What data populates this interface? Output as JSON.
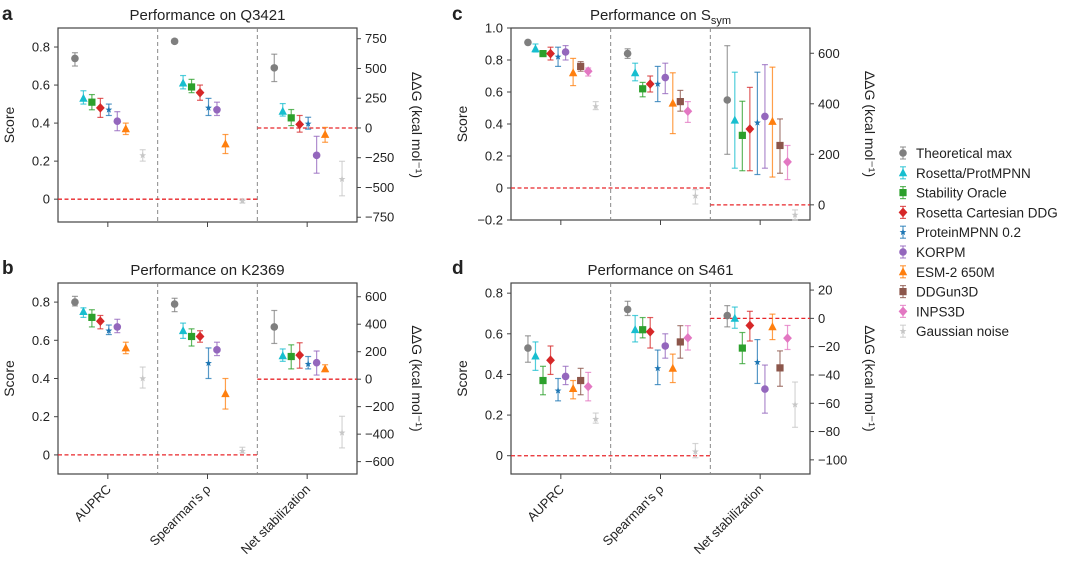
{
  "chart_data": {
    "type": "scatter",
    "subtype": "errorbar-dot-plot",
    "methods": [
      {
        "name": "Theoretical max",
        "color": "#7f7f7f",
        "marker": "circle"
      },
      {
        "name": "Rosetta/ProtMPNN",
        "color": "#17becf",
        "marker": "triangle"
      },
      {
        "name": "Stability Oracle",
        "color": "#2ca02c",
        "marker": "square"
      },
      {
        "name": "Rosetta Cartesian DDG",
        "color": "#d62728",
        "marker": "diamond"
      },
      {
        "name": "ProteinMPNN 0.2",
        "color": "#1f77b4",
        "marker": "star"
      },
      {
        "name": "KORPM",
        "color": "#9467bd",
        "marker": "circle"
      },
      {
        "name": "ESM-2 650M",
        "color": "#ff7f0e",
        "marker": "triangle"
      },
      {
        "name": "DDGun3D",
        "color": "#8c564b",
        "marker": "square"
      },
      {
        "name": "INPS3D",
        "color": "#e377c2",
        "marker": "diamond"
      },
      {
        "name": "Gaussian noise",
        "color": "#c7c7c7",
        "marker": "star"
      }
    ],
    "categories": [
      "AUPRC",
      "Spearman's ρ",
      "Net stabilization"
    ],
    "legend": {
      "placement": "right"
    },
    "panels": [
      {
        "letter": "a",
        "title": "Performance on Q3421",
        "title_sub": "",
        "ylabel": "Score",
        "y2label": "ΔΔG (kcal mol⁻¹)",
        "ylim": [
          -0.12,
          0.9
        ],
        "yticks": [
          0,
          0.2,
          0.4,
          0.6,
          0.8
        ],
        "yticklabels": [
          "0",
          "0.2",
          "0.4",
          "0.6",
          "0.8"
        ],
        "y2lim": [
          -790,
          840
        ],
        "y2ticks": [
          -750,
          -500,
          -250,
          0,
          250,
          500,
          750
        ],
        "y2ticklabels": [
          "−750",
          "−500",
          "−250",
          "0",
          "250",
          "500",
          "750"
        ],
        "groups": [
          {
            "category": "AUPRC",
            "axis": "left",
            "methods": [
              "Theoretical max",
              "Rosetta/ProtMPNN",
              "Stability Oracle",
              "Rosetta Cartesian DDG",
              "ProteinMPNN 0.2",
              "KORPM",
              "ESM-2 650M",
              "Gaussian noise"
            ],
            "values": [
              0.74,
              0.53,
              0.51,
              0.48,
              0.47,
              0.41,
              0.37,
              0.23
            ],
            "err_low": [
              0.7,
              0.5,
              0.47,
              0.43,
              0.44,
              0.36,
              0.34,
              0.2
            ],
            "err_high": [
              0.77,
              0.57,
              0.55,
              0.53,
              0.5,
              0.46,
              0.4,
              0.26
            ]
          },
          {
            "category": "Spearman's ρ",
            "axis": "left",
            "methods": [
              "Theoretical max",
              "Rosetta/ProtMPNN",
              "Stability Oracle",
              "Rosetta Cartesian DDG",
              "ProteinMPNN 0.2",
              "KORPM",
              "ESM-2 650M",
              "Gaussian noise"
            ],
            "values": [
              0.83,
              0.61,
              0.59,
              0.56,
              0.48,
              0.47,
              0.29,
              -0.01
            ],
            "err_low": [
              0.82,
              0.58,
              0.56,
              0.52,
              0.44,
              0.44,
              0.24,
              -0.02
            ],
            "err_high": [
              0.84,
              0.65,
              0.63,
              0.6,
              0.53,
              0.51,
              0.34,
              0.0
            ]
          },
          {
            "category": "Net stabilization",
            "axis": "right",
            "methods": [
              "Theoretical max",
              "Rosetta/ProtMPNN",
              "Stability Oracle",
              "Rosetta Cartesian DDG",
              "ProteinMPNN 0.2",
              "KORPM",
              "ESM-2 650M",
              "Gaussian noise"
            ],
            "values": [
              505,
              140,
              85,
              30,
              35,
              -230,
              -55,
              -430
            ],
            "err_low": [
              390,
              100,
              20,
              -35,
              -10,
              -380,
              -120,
              -570
            ],
            "err_high": [
              620,
              205,
              155,
              105,
              90,
              -70,
              5,
              -280
            ]
          }
        ],
        "reference": {
          "left_zero_until": "Net stabilization",
          "right_zero_from": "Net stabilization"
        }
      },
      {
        "letter": "b",
        "title": "Performance on K2369",
        "title_sub": "",
        "ylabel": "Score",
        "y2label": "ΔΔG (kcal mol⁻¹)",
        "ylim": [
          -0.1,
          0.9
        ],
        "yticks": [
          0,
          0.2,
          0.4,
          0.6,
          0.8
        ],
        "yticklabels": [
          "0",
          "0.2",
          "0.4",
          "0.6",
          "0.8"
        ],
        "y2lim": [
          -690,
          700
        ],
        "y2ticks": [
          -600,
          -400,
          -200,
          0,
          200,
          400,
          600
        ],
        "y2ticklabels": [
          "−600",
          "−400",
          "−200",
          "0",
          "200",
          "400",
          "600"
        ],
        "groups": [
          {
            "category": "AUPRC",
            "axis": "left",
            "methods": [
              "Theoretical max",
              "Rosetta/ProtMPNN",
              "Stability Oracle",
              "Rosetta Cartesian DDG",
              "ProteinMPNN 0.2",
              "KORPM",
              "ESM-2 650M",
              "Gaussian noise"
            ],
            "values": [
              0.8,
              0.75,
              0.72,
              0.7,
              0.65,
              0.67,
              0.56,
              0.4
            ],
            "err_low": [
              0.78,
              0.72,
              0.67,
              0.66,
              0.63,
              0.64,
              0.53,
              0.35
            ],
            "err_high": [
              0.83,
              0.77,
              0.76,
              0.73,
              0.68,
              0.71,
              0.59,
              0.46
            ]
          },
          {
            "category": "Spearman's ρ",
            "axis": "left",
            "methods": [
              "Theoretical max",
              "Rosetta/ProtMPNN",
              "Stability Oracle",
              "Rosetta Cartesian DDG",
              "ProteinMPNN 0.2",
              "KORPM",
              "ESM-2 650M",
              "Gaussian noise"
            ],
            "values": [
              0.79,
              0.65,
              0.62,
              0.62,
              0.48,
              0.55,
              0.32,
              0.02
            ],
            "err_low": [
              0.75,
              0.61,
              0.57,
              0.59,
              0.4,
              0.52,
              0.24,
              0.01
            ],
            "err_high": [
              0.82,
              0.69,
              0.66,
              0.65,
              0.56,
              0.59,
              0.4,
              0.04
            ]
          },
          {
            "category": "Net stabilization",
            "axis": "right",
            "methods": [
              "Theoretical max",
              "Rosetta/ProtMPNN",
              "Stability Oracle",
              "Rosetta Cartesian DDG",
              "ProteinMPNN 0.2",
              "KORPM",
              "ESM-2 650M",
              "Gaussian noise"
            ],
            "values": [
              380,
              170,
              165,
              175,
              110,
              120,
              75,
              -390
            ],
            "err_low": [
              260,
              130,
              75,
              80,
              75,
              30,
              55,
              -500
            ],
            "err_high": [
              500,
              220,
              250,
              265,
              165,
              205,
              105,
              -270
            ]
          }
        ]
      },
      {
        "letter": "c",
        "title": "Performance on S",
        "title_sub": "sym",
        "ylabel": "Score",
        "y2label": "ΔΔG (kcal mol⁻¹)",
        "ylim": [
          -0.2,
          1.0
        ],
        "yticks": [
          -0.2,
          0,
          0.2,
          0.4,
          0.6,
          0.8,
          1.0
        ],
        "yticklabels": [
          "−0.2",
          "0",
          "0.2",
          "0.4",
          "0.6",
          "0.8",
          "1.0"
        ],
        "y2lim": [
          -60,
          700
        ],
        "y2ticks": [
          0,
          200,
          400,
          600
        ],
        "y2ticklabels": [
          "0",
          "200",
          "400",
          "600"
        ],
        "groups": [
          {
            "category": "AUPRC",
            "axis": "left",
            "methods": [
              "Theoretical max",
              "Rosetta/ProtMPNN",
              "Stability Oracle",
              "Rosetta Cartesian DDG",
              "ProteinMPNN 0.2",
              "KORPM",
              "ESM-2 650M",
              "DDGun3D",
              "INPS3D",
              "Gaussian noise"
            ],
            "values": [
              0.91,
              0.87,
              0.84,
              0.84,
              0.82,
              0.85,
              0.72,
              0.76,
              0.73,
              0.51
            ],
            "err_low": [
              0.9,
              0.85,
              0.83,
              0.8,
              0.76,
              0.8,
              0.64,
              0.73,
              0.7,
              0.49
            ],
            "err_high": [
              0.92,
              0.9,
              0.85,
              0.88,
              0.88,
              0.89,
              0.81,
              0.79,
              0.75,
              0.54
            ]
          },
          {
            "category": "Spearman's ρ",
            "axis": "left",
            "methods": [
              "Theoretical max",
              "Rosetta/ProtMPNN",
              "Stability Oracle",
              "Rosetta Cartesian DDG",
              "ProteinMPNN 0.2",
              "KORPM",
              "ESM-2 650M",
              "DDGun3D",
              "INPS3D",
              "Gaussian noise"
            ],
            "values": [
              0.84,
              0.72,
              0.62,
              0.65,
              0.65,
              0.69,
              0.53,
              0.54,
              0.48,
              -0.05
            ],
            "err_low": [
              0.81,
              0.67,
              0.57,
              0.6,
              0.54,
              0.59,
              0.34,
              0.48,
              0.41,
              -0.1
            ],
            "err_high": [
              0.87,
              0.78,
              0.66,
              0.7,
              0.76,
              0.78,
              0.72,
              0.61,
              0.54,
              -0.01
            ]
          },
          {
            "category": "Net stabilization",
            "axis": "right",
            "methods": [
              "Theoretical max",
              "Rosetta/ProtMPNN",
              "Stability Oracle",
              "Rosetta Cartesian DDG",
              "ProteinMPNN 0.2",
              "KORPM",
              "ESM-2 650M",
              "DDGun3D",
              "INPS3D",
              "Gaussian noise"
            ],
            "values": [
              415,
              335,
              275,
              300,
              325,
              350,
              330,
              235,
              170,
              -40
            ],
            "err_low": [
              200,
              145,
              135,
              135,
              120,
              145,
              110,
              125,
              100,
              -60
            ],
            "err_high": [
              630,
              525,
              410,
              465,
              525,
              555,
              545,
              340,
              235,
              -20
            ]
          }
        ]
      },
      {
        "letter": "d",
        "title": "Performance on S461",
        "title_sub": "",
        "ylabel": "Score",
        "y2label": "ΔΔG (kcal mol⁻¹)",
        "ylim": [
          -0.09,
          0.85
        ],
        "yticks": [
          0,
          0.2,
          0.4,
          0.6,
          0.8
        ],
        "yticklabels": [
          "0",
          "0.2",
          "0.4",
          "0.6",
          "0.8"
        ],
        "y2lim": [
          -110,
          25
        ],
        "y2ticks": [
          -100,
          -80,
          -60,
          -40,
          -20,
          0,
          20
        ],
        "y2ticklabels": [
          "−100",
          "−80",
          "−60",
          "−40",
          "−20",
          "0",
          "20"
        ],
        "groups": [
          {
            "category": "AUPRC",
            "axis": "left",
            "methods": [
              "Theoretical max",
              "Rosetta/ProtMPNN",
              "Stability Oracle",
              "Rosetta Cartesian DDG",
              "ProteinMPNN 0.2",
              "KORPM",
              "ESM-2 650M",
              "DDGun3D",
              "INPS3D",
              "Gaussian noise"
            ],
            "values": [
              0.53,
              0.49,
              0.37,
              0.47,
              0.32,
              0.39,
              0.33,
              0.37,
              0.34,
              0.18
            ],
            "err_low": [
              0.46,
              0.42,
              0.3,
              0.4,
              0.27,
              0.35,
              0.28,
              0.3,
              0.27,
              0.16
            ],
            "err_high": [
              0.59,
              0.56,
              0.44,
              0.54,
              0.38,
              0.44,
              0.37,
              0.43,
              0.41,
              0.21
            ]
          },
          {
            "category": "Spearman's ρ",
            "axis": "left",
            "methods": [
              "Theoretical max",
              "Rosetta/ProtMPNN",
              "Stability Oracle",
              "Rosetta Cartesian DDG",
              "ProteinMPNN 0.2",
              "KORPM",
              "ESM-2 650M",
              "DDGun3D",
              "INPS3D",
              "Gaussian noise"
            ],
            "values": [
              0.72,
              0.62,
              0.62,
              0.61,
              0.43,
              0.54,
              0.43,
              0.56,
              0.58,
              0.02
            ],
            "err_low": [
              0.69,
              0.56,
              0.58,
              0.53,
              0.35,
              0.48,
              0.36,
              0.48,
              0.52,
              -0.01
            ],
            "err_high": [
              0.76,
              0.69,
              0.68,
              0.68,
              0.52,
              0.6,
              0.5,
              0.64,
              0.64,
              0.06
            ]
          },
          {
            "category": "Net stabilization",
            "axis": "right",
            "methods": [
              "Theoretical max",
              "Rosetta/ProtMPNN",
              "Stability Oracle",
              "Rosetta Cartesian DDG",
              "ProteinMPNN 0.2",
              "KORPM",
              "ESM-2 650M",
              "DDGun3D",
              "INPS3D",
              "Gaussian noise"
            ],
            "values": [
              2,
              0,
              -21,
              -5,
              -31,
              -50,
              -6,
              -35,
              -14,
              -61
            ],
            "err_low": [
              -6,
              -7,
              -32,
              -16,
              -46,
              -67,
              -15,
              -48,
              -22,
              -77
            ],
            "err_high": [
              9,
              8,
              -10,
              5,
              -15,
              -33,
              3,
              -23,
              -5,
              -45
            ]
          }
        ]
      }
    ]
  }
}
